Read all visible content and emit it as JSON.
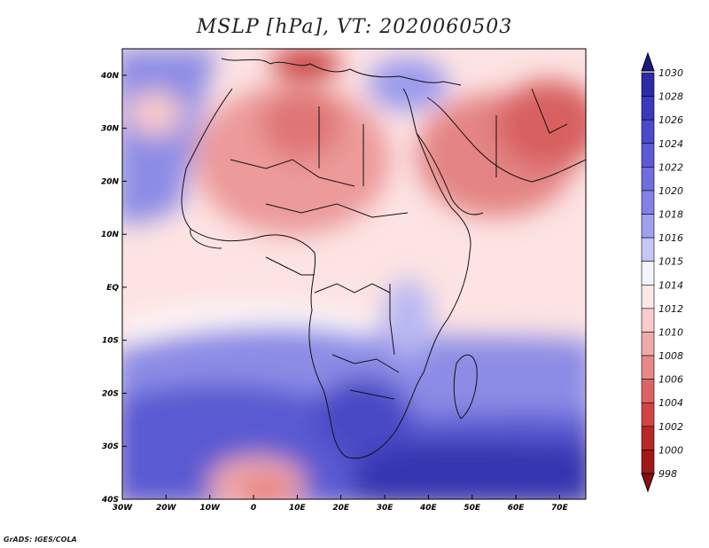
{
  "title": "MSLP [hPa], VT: 2020060503",
  "credit": "GrADS: IGES/COLA",
  "colors": {
    "low_deep": "#8b1a1a",
    "low": "#d94a4a",
    "neutral": "#ffffff",
    "high": "#6a6adf",
    "high_deep": "#2a2aa0"
  },
  "map_axes": {
    "lon_range": [
      -30,
      76
    ],
    "lat_range": [
      -40,
      45
    ],
    "lon_ticks": [
      {
        "value": -30,
        "label": "30W"
      },
      {
        "value": -20,
        "label": "20W"
      },
      {
        "value": -10,
        "label": "10W"
      },
      {
        "value": 0,
        "label": "0"
      },
      {
        "value": 10,
        "label": "10E"
      },
      {
        "value": 20,
        "label": "20E"
      },
      {
        "value": 30,
        "label": "30E"
      },
      {
        "value": 40,
        "label": "40E"
      },
      {
        "value": 50,
        "label": "50E"
      },
      {
        "value": 60,
        "label": "60E"
      },
      {
        "value": 70,
        "label": "70E"
      }
    ],
    "lat_ticks": [
      {
        "value": 40,
        "label": "40N"
      },
      {
        "value": 30,
        "label": "30N"
      },
      {
        "value": 20,
        "label": "20N"
      },
      {
        "value": 10,
        "label": "10N"
      },
      {
        "value": 0,
        "label": "EQ"
      },
      {
        "value": -10,
        "label": "10S"
      },
      {
        "value": -20,
        "label": "20S"
      },
      {
        "value": -30,
        "label": "30S"
      },
      {
        "value": -40,
        "label": "40S"
      }
    ]
  },
  "colorbar": {
    "levels": [
      "1030",
      "1028",
      "1026",
      "1024",
      "1022",
      "1020",
      "1018",
      "1016",
      "1015",
      "1014",
      "1012",
      "1010",
      "1008",
      "1006",
      "1004",
      "1002",
      "1000",
      "998"
    ],
    "bin_colors": [
      "#1f1f8c",
      "#2b2ba6",
      "#3a3abf",
      "#4a4acc",
      "#5b5bd6",
      "#6e6ede",
      "#8282e6",
      "#a0a0ef",
      "#c6c6f7",
      "#f4f4ff",
      "#fde8e8",
      "#f8cccc",
      "#f0aaaa",
      "#e88888",
      "#dd6464",
      "#d04444",
      "#b82828",
      "#a01818"
    ],
    "top_color": "#1a1a80",
    "bottom_color": "#8a1010"
  }
}
